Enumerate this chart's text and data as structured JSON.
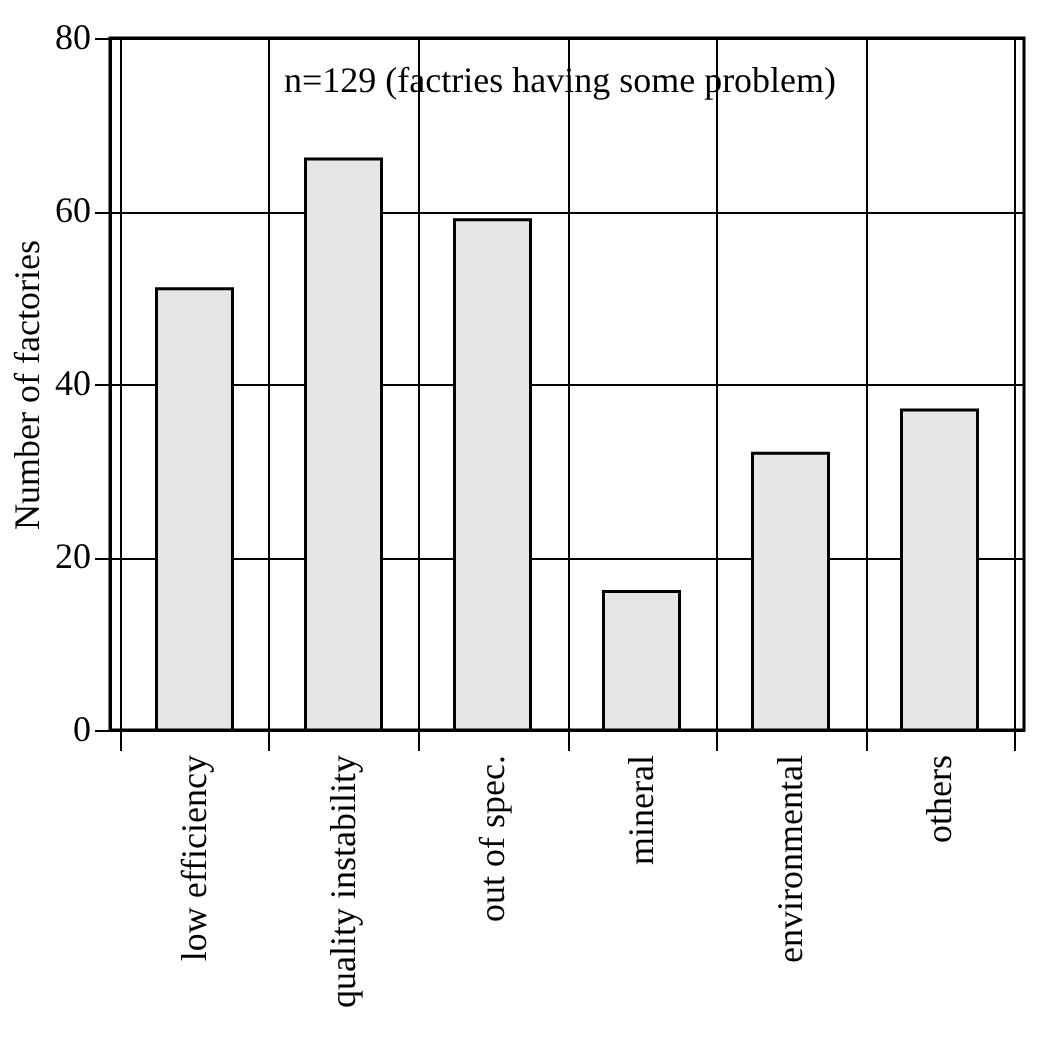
{
  "chart_data": {
    "type": "bar",
    "ylabel": "Number of factories",
    "categories": [
      "low efficiency",
      "quality instability",
      "out of spec.",
      "mineral",
      "environmental",
      "others"
    ],
    "values": [
      51,
      66,
      59,
      16,
      32,
      37
    ],
    "color": "#e6e6e6",
    "ylim": [
      0,
      80
    ],
    "yticks": [
      0,
      20,
      40,
      60,
      80
    ],
    "grid": true,
    "annotations": [
      "n=129 (factries having some problem)"
    ]
  }
}
